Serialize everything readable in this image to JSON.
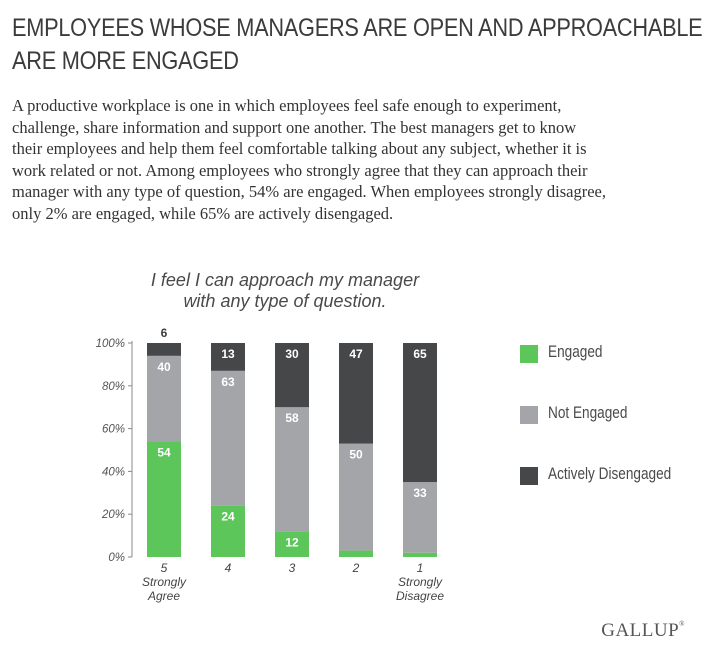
{
  "headline": {
    "lines": [
      "EMPLOYEES WHOSE MANAGERS ARE OPEN AND APPROACHABLE",
      "ARE MORE ENGAGED"
    ]
  },
  "body": {
    "lines": [
      "A productive workplace is one in which employees feel safe enough to experiment,",
      "challenge, share information and support one another. The best managers get to know",
      "their employees and help them feel comfortable talking about any subject, whether it is",
      "work related or not. Among employees who strongly agree that they can approach their",
      "manager with any type of question, 54% are engaged. When employees strongly disagree,",
      "only 2% are engaged, while 65% are actively disengaged."
    ]
  },
  "logo": "GALLUP",
  "colors": {
    "engaged": "#5dc65b",
    "not_engaged": "#a4a5a8",
    "actively_disengaged": "#464749",
    "axis": "#888888",
    "label_text": "#ffffff"
  },
  "chart_data": {
    "type": "bar",
    "stacked": true,
    "title": [
      "I feel I can approach my manager",
      "with any type of question."
    ],
    "categories": [
      {
        "value": "5",
        "sub": [
          "Strongly",
          "Agree"
        ]
      },
      {
        "value": "4",
        "sub": []
      },
      {
        "value": "3",
        "sub": []
      },
      {
        "value": "2",
        "sub": []
      },
      {
        "value": "1",
        "sub": [
          "Strongly",
          "Disagree"
        ]
      }
    ],
    "series": [
      {
        "name": "Engaged",
        "color_key": "engaged",
        "values": [
          54,
          24,
          12,
          3,
          2
        ],
        "labels": [
          "54",
          "24",
          "12",
          "",
          ""
        ]
      },
      {
        "name": "Not Engaged",
        "color_key": "not_engaged",
        "values": [
          40,
          63,
          58,
          50,
          33
        ],
        "labels": [
          "40",
          "63",
          "58",
          "50",
          "33"
        ]
      },
      {
        "name": "Actively Disengaged",
        "color_key": "actively_disengaged",
        "values": [
          6,
          13,
          30,
          47,
          65
        ],
        "labels": [
          "6",
          "13",
          "30",
          "47",
          "65"
        ]
      }
    ],
    "yticks": [
      "0%",
      "20%",
      "40%",
      "60%",
      "80%",
      "100%"
    ],
    "ylim": [
      0,
      100
    ],
    "legend_position": "right"
  }
}
